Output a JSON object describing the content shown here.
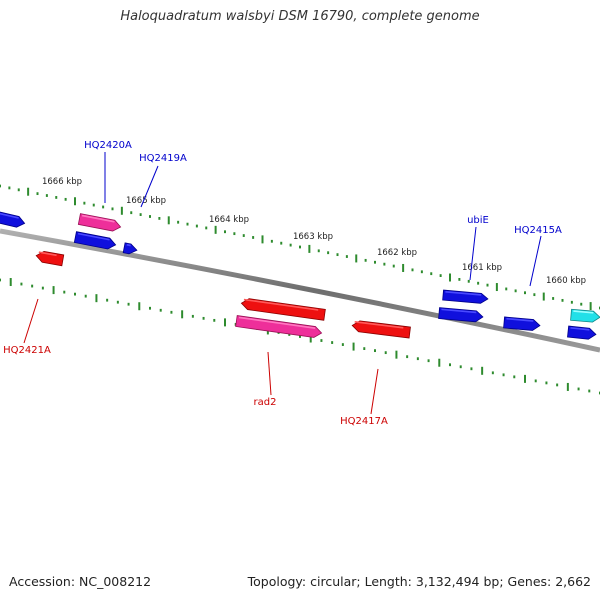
{
  "title": "Haloquadratum walsbyi DSM 16790, complete genome",
  "footer": {
    "accession": "Accession: NC_008212",
    "summary": "Topology: circular; Length: 3,132,494 bp; Genes: 2,662"
  },
  "colors": {
    "backbone": "#7a7a7a",
    "tick": "#2e8b2e",
    "forward_label": "#0000cc",
    "reverse_label": "#cc0000",
    "blue": "#1010dd",
    "red": "#ee1010",
    "pink": "#ee2f9a",
    "cyan": "#22e0e8"
  },
  "scale_labels": [
    "1666 kbp",
    "1665 kbp",
    "1664 kbp",
    "1663 kbp",
    "1662 kbp",
    "1661 kbp",
    "1660 kbp"
  ],
  "gene_labels": {
    "forward": [
      "HQ2420A",
      "HQ2419A",
      "ubiE",
      "HQ2415A"
    ],
    "reverse": [
      "HQ2421A",
      "rad2",
      "HQ2417A"
    ]
  },
  "features": [
    {
      "name": "forward-gene",
      "color": "blue"
    },
    {
      "name": "HQ2420A",
      "color": "pink"
    },
    {
      "name": "forward-gene",
      "color": "blue"
    },
    {
      "name": "HQ2419A",
      "color": "blue"
    },
    {
      "name": "ubiE",
      "color": "blue"
    },
    {
      "name": "forward-gene",
      "color": "blue"
    },
    {
      "name": "HQ2415A",
      "color": "blue"
    },
    {
      "name": "forward-gene",
      "color": "blue"
    },
    {
      "name": "forward-gene",
      "color": "cyan"
    },
    {
      "name": "HQ2421A",
      "color": "red"
    },
    {
      "name": "rad2",
      "color": "red"
    },
    {
      "name": "rad2",
      "color": "pink"
    },
    {
      "name": "HQ2417A",
      "color": "red"
    }
  ]
}
